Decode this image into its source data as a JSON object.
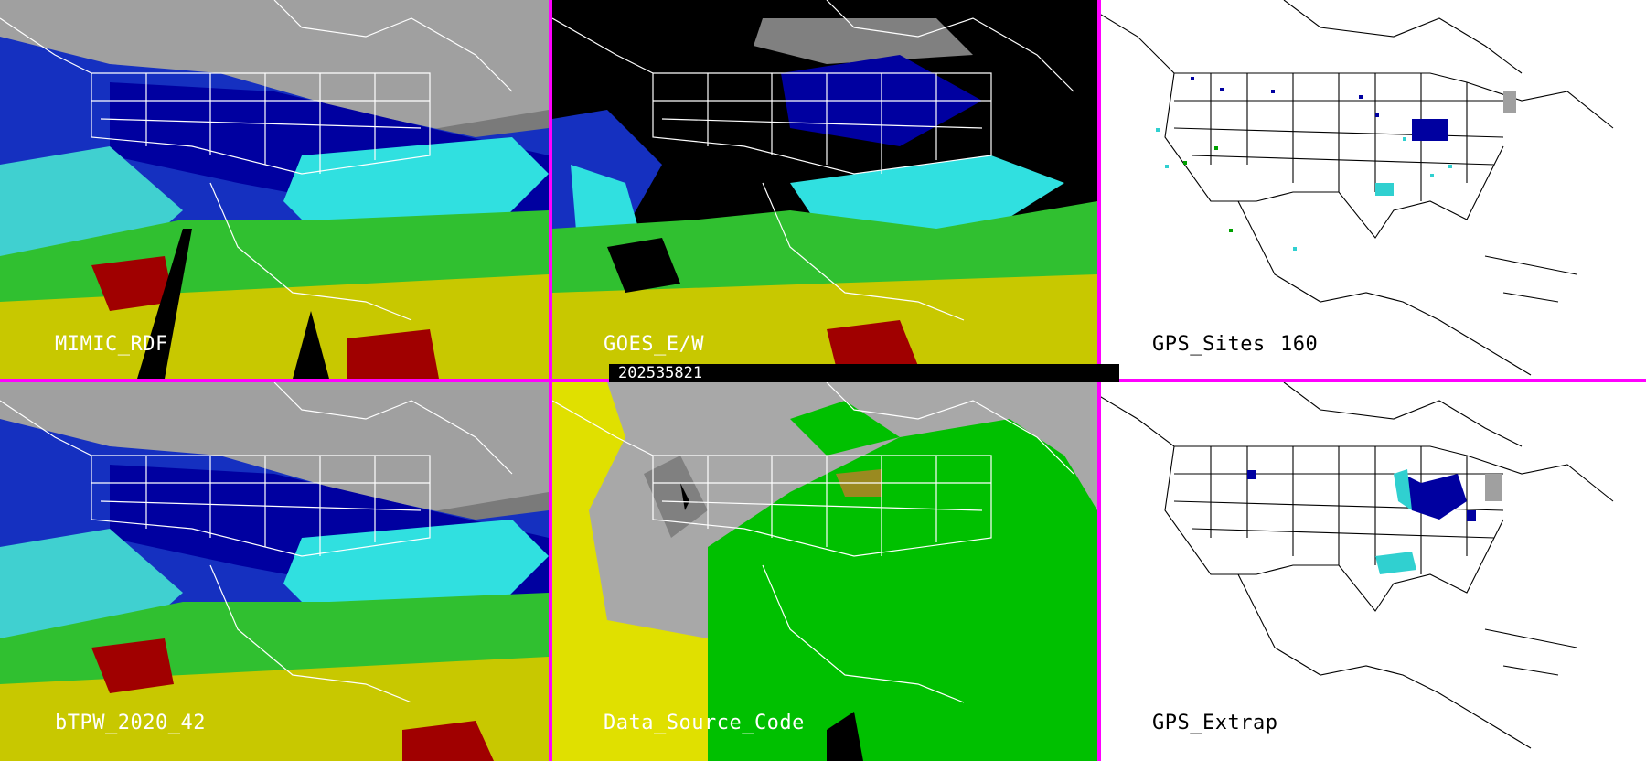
{
  "panels": {
    "mimic": {
      "label": "MIMIC_RDF"
    },
    "goes": {
      "label": "GOES_E/W"
    },
    "gps_sites": {
      "label": "GPS_Sites",
      "count": "160"
    },
    "btpw": {
      "label": "bTPW_2020_42"
    },
    "data_source": {
      "label": "Data_Source_Code"
    },
    "gps_extrap": {
      "label": "GPS_Extrap"
    }
  },
  "timestamp": "202535821",
  "colors": {
    "divider": "#ff00ff",
    "palette_low": "#0000a0",
    "palette_mid": "#00e0e0",
    "palette_green": "#00c000",
    "palette_yellow": "#e0e000",
    "palette_red": "#a00000",
    "source_green": "#00c000",
    "source_yellow": "#e0e000",
    "source_gray": "#a8a8a8",
    "source_olive": "#9a8a20"
  }
}
